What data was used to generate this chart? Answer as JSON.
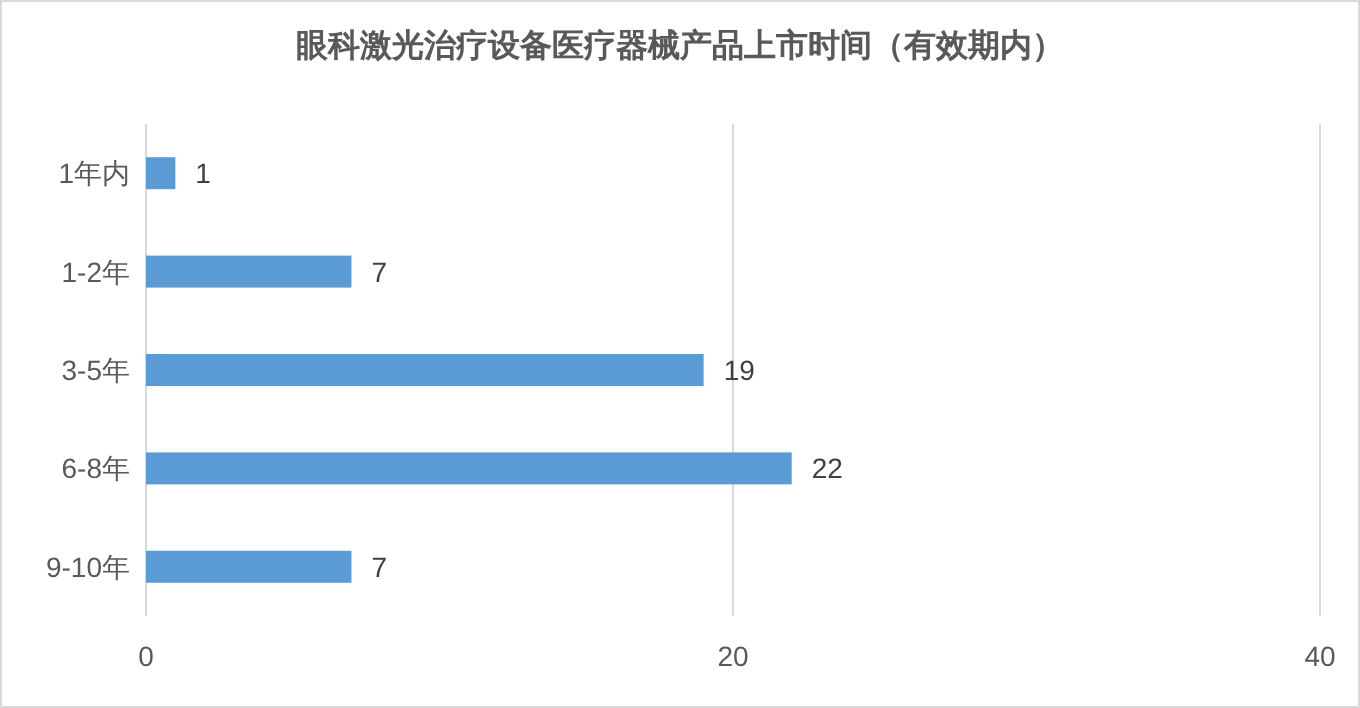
{
  "chart_data": {
    "type": "bar",
    "orientation": "horizontal",
    "title": "眼科激光治疗设备医疗器械产品上市时间（有效期内）",
    "categories": [
      "1年内",
      "1-2年",
      "3-5年",
      "6-8年",
      "9-10年"
    ],
    "values": [
      1,
      7,
      19,
      22,
      7
    ],
    "color": "#5b9bd5",
    "xlim": [
      0,
      40
    ],
    "xticks": [
      0,
      20,
      40
    ],
    "grid": "x",
    "data_labels": true
  }
}
